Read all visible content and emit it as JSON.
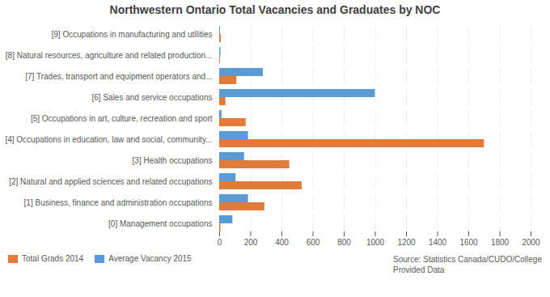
{
  "chart_data": {
    "type": "bar",
    "orientation": "horizontal",
    "title": "Northwestern Ontario Total Vacancies and Graduates by NOC",
    "categories": [
      "[9] Occupations in manufacturing and utilities",
      "[8] Natural resources, agriculture and related production...",
      "[7] Trades, transport and equipment operators and...",
      "[6] Sales and service occupations",
      "[5] Occupations in art, culture, recreation and sport",
      "[4] Occupations in education, law and social, community...",
      "[3] Health occupations",
      "[2] Natural and applied sciences and related occupations",
      "[1] Business, finance and administration occupations",
      "[0] Management occupations"
    ],
    "series": [
      {
        "name": "Total Grads 2014",
        "color": "#e07b39",
        "values": [
          10,
          5,
          110,
          40,
          170,
          1700,
          450,
          530,
          290,
          8
        ]
      },
      {
        "name": "Average Vacancy 2015",
        "color": "#5b9bd5",
        "values": [
          5,
          8,
          280,
          1000,
          15,
          185,
          160,
          105,
          185,
          85
        ]
      }
    ],
    "xlim": [
      0,
      2000
    ],
    "xticks": [
      0,
      200,
      400,
      600,
      800,
      1000,
      1200,
      1400,
      1600,
      1800,
      2000
    ],
    "grid": true,
    "legend": "bottom",
    "annotations": [
      "Source: Statistics Canada/CUDO/College\nProvided Data"
    ]
  }
}
